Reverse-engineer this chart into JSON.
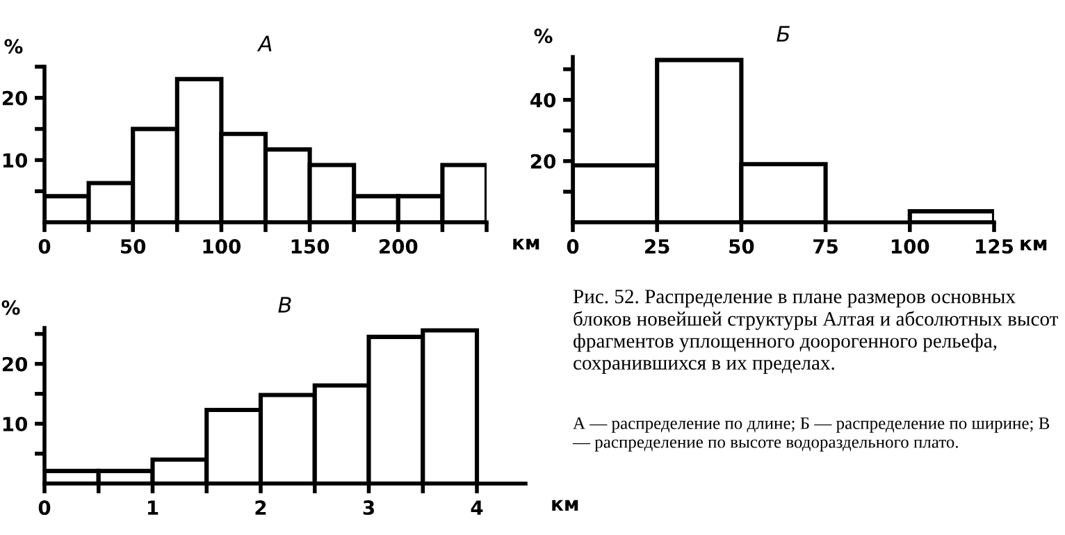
{
  "chart_data": [
    {
      "type": "histogram",
      "title": "А",
      "ylabel": "%",
      "xlabel": "км",
      "color": "#ffffff",
      "bins": [
        0,
        25,
        50,
        75,
        100,
        125,
        150,
        175,
        200,
        225,
        250
      ],
      "values": [
        4.2,
        6.3,
        15,
        23,
        14.2,
        11.7,
        9.2,
        4.2,
        4.2,
        9.2
      ],
      "xlim": [
        0,
        250
      ],
      "ylim": [
        0,
        25
      ],
      "xticks": [
        0,
        {
          "value": 25,
          "label": null
        },
        50,
        {
          "value": 75,
          "label": null
        },
        100,
        {
          "value": 125,
          "label": null
        },
        150,
        {
          "value": 175,
          "label": null
        },
        200,
        {
          "value": 225,
          "label": null
        },
        {
          "value": 250,
          "label": null
        }
      ],
      "yticks": [
        {
          "value": 5,
          "label": null
        },
        10,
        {
          "value": 15,
          "label": null
        },
        20,
        {
          "value": 25,
          "label": null
        }
      ]
    },
    {
      "type": "histogram",
      "title": "Б",
      "ylabel": "%",
      "xlabel": "км",
      "color": "#ffffff",
      "bins": [
        0,
        25,
        50,
        75,
        100,
        125
      ],
      "values": [
        18.6,
        53,
        19,
        0,
        3.6
      ],
      "xlim": [
        0,
        125
      ],
      "ylim": [
        0,
        54
      ],
      "xticks": [
        0,
        25,
        50,
        75,
        100,
        125
      ],
      "yticks": [
        {
          "value": 10,
          "label": null
        },
        20,
        {
          "value": 30,
          "label": null
        },
        40,
        {
          "value": 50,
          "label": null
        }
      ]
    },
    {
      "type": "histogram",
      "title": "В",
      "ylabel": "%",
      "xlabel": "км",
      "color": "#ffffff",
      "bins": [
        0,
        0.5,
        1,
        1.5,
        2,
        2.5,
        3,
        3.5,
        4
      ],
      "values": [
        2.1,
        2.1,
        4,
        12.3,
        14.8,
        16.4,
        24.5,
        25.6
      ],
      "xlim": [
        0,
        4.45
      ],
      "ylim": [
        0,
        26
      ],
      "xticks": [
        0,
        {
          "value": 0.5,
          "label": null
        },
        1,
        {
          "value": 1.5,
          "label": null
        },
        2,
        {
          "value": 2.5,
          "label": null
        },
        3,
        {
          "value": 3.5,
          "label": null
        },
        4
      ],
      "yticks": [
        {
          "value": 5,
          "label": null
        },
        10,
        {
          "value": 15,
          "label": null
        },
        20,
        {
          "value": 25,
          "label": null
        }
      ]
    },
    {
      "type": "other",
      "annotations": [
        "Рис. 52. Распределение в плане размеров основных блоков новейшей структуры Алтая и абсолютных высот фрагментов уплощенного доорогенного рельефа, сохранившихся в их пределах.",
        "А — распределение по длине; Б — распределение по ширине; В — распределение по высоте водораздельного плато."
      ]
    }
  ]
}
